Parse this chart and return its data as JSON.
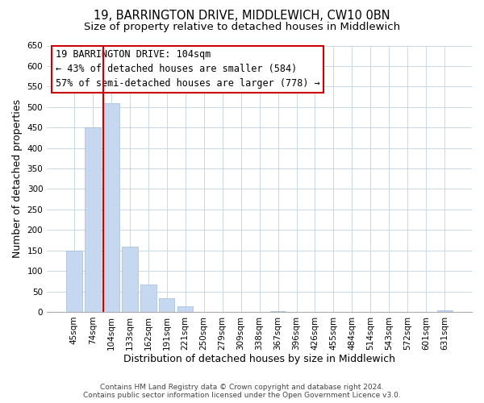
{
  "title": "19, BARRINGTON DRIVE, MIDDLEWICH, CW10 0BN",
  "subtitle": "Size of property relative to detached houses in Middlewich",
  "xlabel": "Distribution of detached houses by size in Middlewich",
  "ylabel": "Number of detached properties",
  "categories": [
    "45sqm",
    "74sqm",
    "104sqm",
    "133sqm",
    "162sqm",
    "191sqm",
    "221sqm",
    "250sqm",
    "279sqm",
    "309sqm",
    "338sqm",
    "367sqm",
    "396sqm",
    "426sqm",
    "455sqm",
    "484sqm",
    "514sqm",
    "543sqm",
    "572sqm",
    "601sqm",
    "631sqm"
  ],
  "values": [
    150,
    450,
    510,
    160,
    67,
    33,
    13,
    0,
    0,
    0,
    0,
    2,
    0,
    0,
    0,
    0,
    0,
    0,
    0,
    0,
    3
  ],
  "bar_color": "#c5d8f0",
  "bar_edge_color": "#a0bcd8",
  "highlight_line_color": "#cc0000",
  "highlight_bar_index": 2,
  "ylim": [
    0,
    650
  ],
  "yticks": [
    0,
    50,
    100,
    150,
    200,
    250,
    300,
    350,
    400,
    450,
    500,
    550,
    600,
    650
  ],
  "annotation_line1": "19 BARRINGTON DRIVE: 104sqm",
  "annotation_line2": "← 43% of detached houses are smaller (584)",
  "annotation_line3": "57% of semi-detached houses are larger (778) →",
  "footer_line1": "Contains HM Land Registry data © Crown copyright and database right 2024.",
  "footer_line2": "Contains public sector information licensed under the Open Government Licence v3.0.",
  "background_color": "#ffffff",
  "grid_color": "#c8d8e8",
  "title_fontsize": 10.5,
  "subtitle_fontsize": 9.5,
  "tick_fontsize": 7.5,
  "axis_label_fontsize": 9,
  "annotation_fontsize": 8.5,
  "footer_fontsize": 6.5
}
